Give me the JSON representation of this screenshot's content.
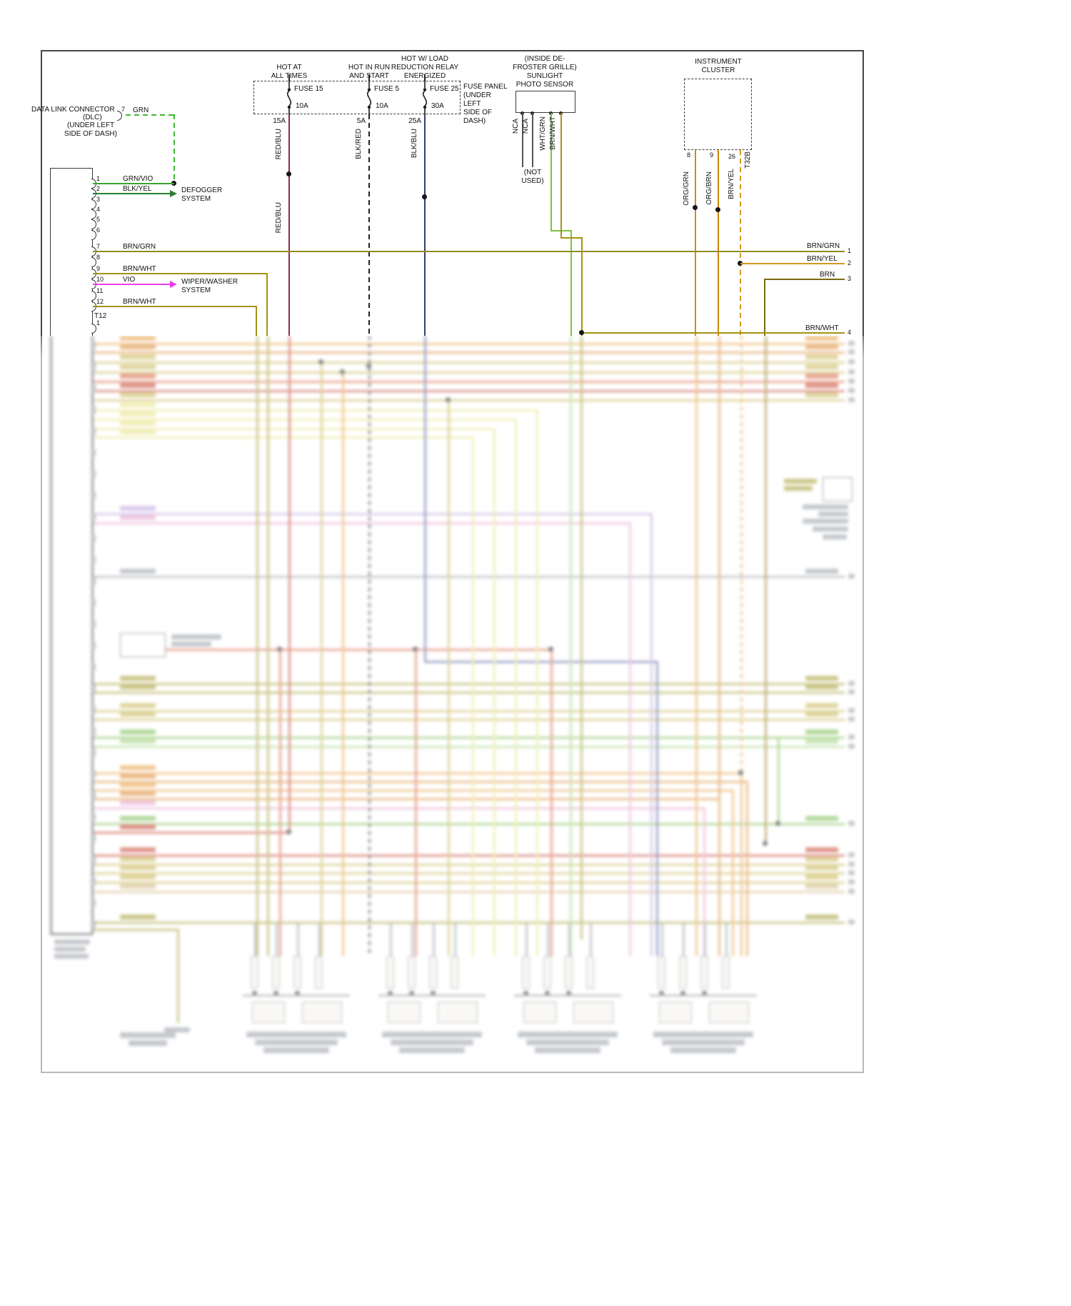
{
  "power": {
    "hot_labels": [
      "HOT AT\nALL TIMES",
      "HOT IN RUN\nAND START",
      "HOT W/ LOAD\nREDUCTION RELAY\nENERGIZED"
    ],
    "fuses": [
      {
        "name": "FUSE 15",
        "rating": "10A",
        "feed": "15A",
        "wire": "RED/BLU"
      },
      {
        "name": "FUSE 5",
        "rating": "10A",
        "feed": "5A",
        "wire": "BLK/RED"
      },
      {
        "name": "FUSE 25",
        "rating": "30A",
        "feed": "25A",
        "wire": "BLK/BLU"
      }
    ],
    "panel_label": "FUSE PANEL\n(UNDER\nLEFT\nSIDE OF\nDASH)",
    "red_blu_repeat": "RED/BLU"
  },
  "photo_sensor": {
    "title": "(INSIDE DE-\nFROSTER GRILLE)\nSUNLIGHT\nPHOTO SENSOR",
    "wires": [
      "NCA",
      "NCA",
      "WHT/GRN",
      "BRN/WHT"
    ],
    "not_used": "(NOT\nUSED)"
  },
  "instrument_cluster": {
    "title": "INSTRUMENT\nCLUSTER",
    "pins": [
      "8",
      "9",
      "26"
    ],
    "connector": "T32B",
    "wires": [
      "ORG/GRN",
      "ORG/BRN",
      "BRN/YEL"
    ]
  },
  "dlc": {
    "title": "DATA LINK CONNECTOR",
    "abbr": "(DLC)",
    "location": "(UNDER LEFT\nSIDE OF DASH)",
    "pin": "7",
    "wire": "GRN"
  },
  "left_connector": {
    "pins": [
      {
        "n": "1",
        "wire": "GRN/VIO"
      },
      {
        "n": "2",
        "wire": "BLK/YEL"
      },
      {
        "n": "3",
        "wire": ""
      },
      {
        "n": "4",
        "wire": ""
      },
      {
        "n": "5",
        "wire": ""
      },
      {
        "n": "6",
        "wire": ""
      },
      {
        "n": "7",
        "wire": "BRN/GRN"
      },
      {
        "n": "8",
        "wire": ""
      },
      {
        "n": "9",
        "wire": "BRN/WHT"
      },
      {
        "n": "10",
        "wire": "VIO"
      },
      {
        "n": "11",
        "wire": ""
      },
      {
        "n": "12",
        "wire": "BRN/WHT"
      }
    ],
    "connector_name": "T12",
    "next_pin": "1"
  },
  "destinations": {
    "defogger": "DEFOGGER\nSYSTEM",
    "wiper": "WIPER/WASHER\nSYSTEM"
  },
  "right_exits": [
    {
      "wire": "BRN/GRN",
      "n": "1"
    },
    {
      "wire": "BRN/YEL",
      "n": "2"
    },
    {
      "wire": "BRN",
      "n": "3"
    },
    {
      "wire": "BRN/WHT",
      "n": "4"
    }
  ],
  "wire_colors": {
    "GRN": "#3db82e",
    "GRN/VIO": "#35a82c",
    "BLK/YEL": "#2e7d32",
    "BRN/GRN": "#8f8b1e",
    "BRN/WHT": "#a39312",
    "VIO": "#e93fe9",
    "RED/BLU": "#8d2f44",
    "BLK/RED": "#222222",
    "BLK/BLU": "#333f6e",
    "ORG/GRN": "#d08c1a",
    "ORG/BRN": "#cc8400",
    "BRN/YEL": "#d5981e",
    "BRN": "#7d6a10",
    "WHT/GRN": "#7cc23e"
  }
}
